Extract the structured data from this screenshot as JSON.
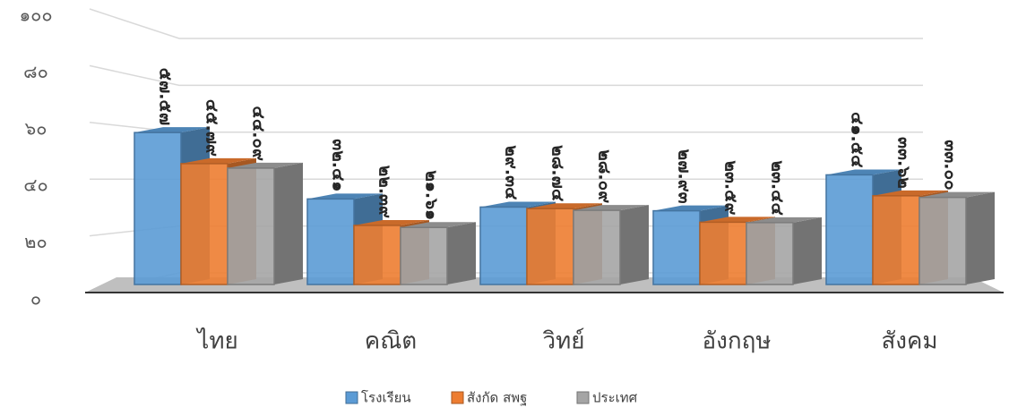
{
  "chart_data": {
    "type": "bar3d",
    "categories": [
      "ไทย",
      "คณิต",
      "วิทย์",
      "อังกฤษ",
      "สังคม"
    ],
    "series": [
      {
        "name": "โรงเรียน",
        "color": "#5b9bd5",
        "values": [
          57.57,
          32.41,
          29.34,
          27.93,
          41.54
        ],
        "value_labels": [
          "๕๗.๕๗",
          "๓๒.๔๑",
          "๒๙.๓๔",
          "๒๗.๙๓",
          "๔๑.๕๔"
        ]
      },
      {
        "name": "สังกัด สพฐ",
        "color": "#ed7d31",
        "values": [
          45.79,
          22.39,
          28.74,
          23.59,
          33.62
        ],
        "value_labels": [
          "๔๕.๗๙",
          "๒๒.๓๙",
          "๒๘.๗๔",
          "๒๓.๕๙",
          "๓๓.๖๒"
        ]
      },
      {
        "name": "ประเทศ",
        "color": "#a5a5a5",
        "values": [
          44.09,
          21.61,
          28.09,
          23.44,
          33.0
        ],
        "value_labels": [
          "๔๔.๐๙",
          "๒๑.๖๑",
          "๒๘.๐๙",
          "๒๓.๔๔",
          "๓๓.๐๐"
        ]
      }
    ],
    "ylim": [
      0,
      100
    ],
    "yticks": [
      {
        "value": 0,
        "label": "๐"
      },
      {
        "value": 20,
        "label": "๒๐"
      },
      {
        "value": 40,
        "label": "๔๐"
      },
      {
        "value": 60,
        "label": "๖๐"
      },
      {
        "value": 80,
        "label": "๘๐"
      },
      {
        "value": 100,
        "label": "๑๐๐"
      }
    ],
    "grid": true,
    "legend": "bottom"
  }
}
